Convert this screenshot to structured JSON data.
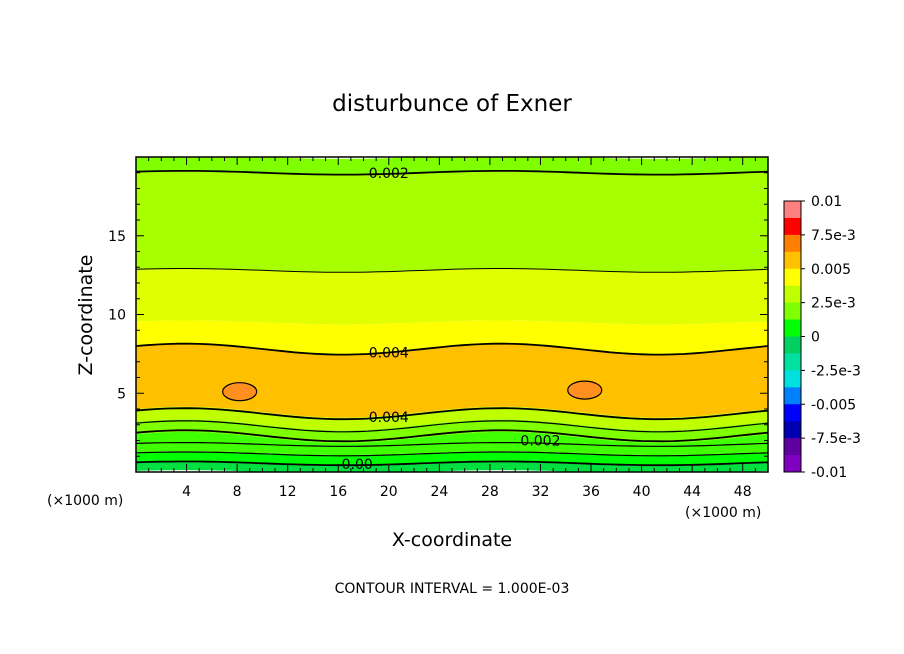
{
  "chart_data": {
    "type": "heatmap",
    "title": "disturbunce of Exner",
    "xlabel": "X-coordinate",
    "ylabel": "Z-coordinate",
    "x_unit": "(×1000 m)",
    "x_unit_right": "(×1000 m)",
    "xlim": [
      0,
      50
    ],
    "ylim": [
      0,
      20
    ],
    "x_ticks": [
      4,
      8,
      12,
      16,
      20,
      24,
      28,
      32,
      36,
      40,
      44,
      48
    ],
    "y_ticks": [
      5,
      10,
      15
    ],
    "contour_interval_text": "CONTOUR INTERVAL = 1.000E-03",
    "contour_labels": [
      {
        "text": "0.002",
        "x": 20,
        "z": 19.0
      },
      {
        "text": "0.004",
        "x": 20,
        "z": 7.6
      },
      {
        "text": "0.004",
        "x": 20,
        "z": 3.5
      },
      {
        "text": "0.002",
        "x": 32,
        "z": 2.0
      },
      {
        "text": "0.00",
        "x": 17.5,
        "z": 0.5
      }
    ],
    "colorbar": {
      "labels": [
        "0.01",
        "7.5e-3",
        "0.005",
        "2.5e-3",
        "0",
        "-2.5e-3",
        "-0.005",
        "-7.5e-3",
        "-0.01"
      ],
      "colors": [
        "#ff8080",
        "#ff0000",
        "#ff8000",
        "#ffc000",
        "#ffff00",
        "#c0ff00",
        "#80ff00",
        "#00ff00",
        "#00d060",
        "#00e0a0",
        "#00e0e0",
        "#0080ff",
        "#0000ff",
        "#0000b0",
        "#6000a0",
        "#8000c0"
      ]
    },
    "bands": [
      {
        "z_bottom": 0.0,
        "z_top": 0.5,
        "color": "#00e040"
      },
      {
        "z_bottom": 0.5,
        "z_top": 1.2,
        "color": "#00ff00"
      },
      {
        "z_bottom": 1.2,
        "z_top": 2.2,
        "color": "#40ff00"
      },
      {
        "z_bottom": 2.2,
        "z_top": 3.0,
        "color": "#80ff00"
      },
      {
        "z_bottom": 3.0,
        "z_top": 3.8,
        "color": "#c0ff00"
      },
      {
        "z_bottom": 3.8,
        "z_top": 7.8,
        "color": "#ffc000"
      },
      {
        "z_bottom": 7.8,
        "z_top": 9.5,
        "color": "#ffff00"
      },
      {
        "z_bottom": 9.5,
        "z_top": 12.8,
        "color": "#e0ff00"
      },
      {
        "z_bottom": 12.8,
        "z_top": 19.0,
        "color": "#a8ff00"
      },
      {
        "z_bottom": 19.0,
        "z_top": 20.0,
        "color": "#80ff00"
      }
    ],
    "contours": [
      {
        "z": 0.55,
        "width": 1.8
      },
      {
        "z": 1.15,
        "width": 1.2
      },
      {
        "z": 1.75,
        "width": 1.2
      },
      {
        "z": 2.3,
        "width": 1.8
      },
      {
        "z": 2.9,
        "width": 1.2
      },
      {
        "z": 3.7,
        "width": 1.8
      },
      {
        "z": 7.8,
        "width": 1.8
      },
      {
        "z": 12.8,
        "width": 1.0
      },
      {
        "z": 19.0,
        "width": 1.8
      }
    ],
    "maxima": [
      {
        "x": 8.2,
        "z": 5.1,
        "color": "#ff9020"
      },
      {
        "x": 35.5,
        "z": 5.2,
        "color": "#ff9020"
      }
    ]
  }
}
